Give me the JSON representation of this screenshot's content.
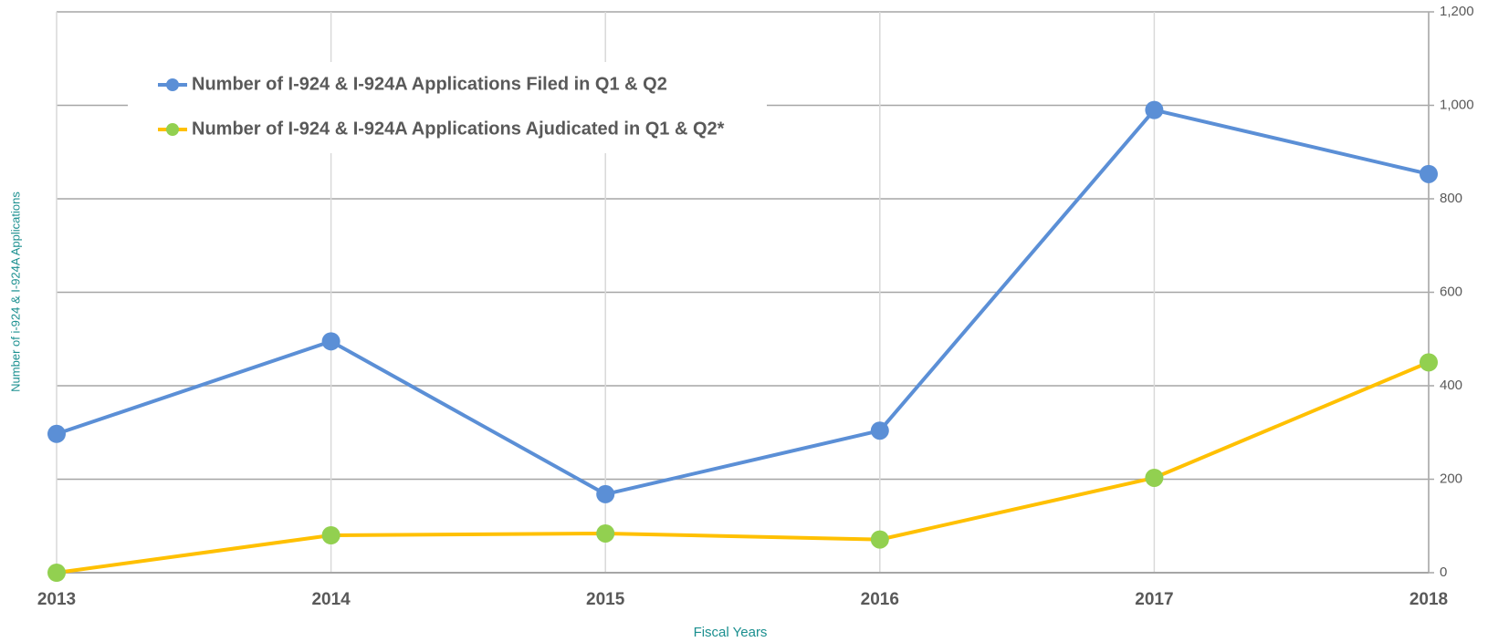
{
  "chart_data": {
    "type": "line",
    "x_label": "Fiscal Years",
    "y_label": "Number of i-924 & I-924A Applications",
    "categories": [
      "2013",
      "2014",
      "2015",
      "2016",
      "2017",
      "2018"
    ],
    "series": [
      {
        "name": "Number of I-924 & I-924A Applications Filed in Q1 & Q2",
        "color": "#5b8fd6",
        "marker_color": "#5b8fd6",
        "values": [
          297,
          495,
          168,
          304,
          990,
          853
        ]
      },
      {
        "name": "Number of I-924 & I-924A Applications Ajudicated in Q1 & Q2*",
        "color": "#ffc000",
        "marker_color": "#92d050",
        "values": [
          0,
          80,
          84,
          71,
          203,
          450
        ]
      }
    ],
    "ylim": [
      0,
      1200
    ],
    "yticks": [
      0,
      200,
      400,
      600,
      800,
      {
        "value": 1000,
        "label": "1,000"
      },
      {
        "value": 1200,
        "label": "1,200"
      }
    ],
    "y_axis_side": "right",
    "grid": true,
    "legend": "upper left"
  }
}
